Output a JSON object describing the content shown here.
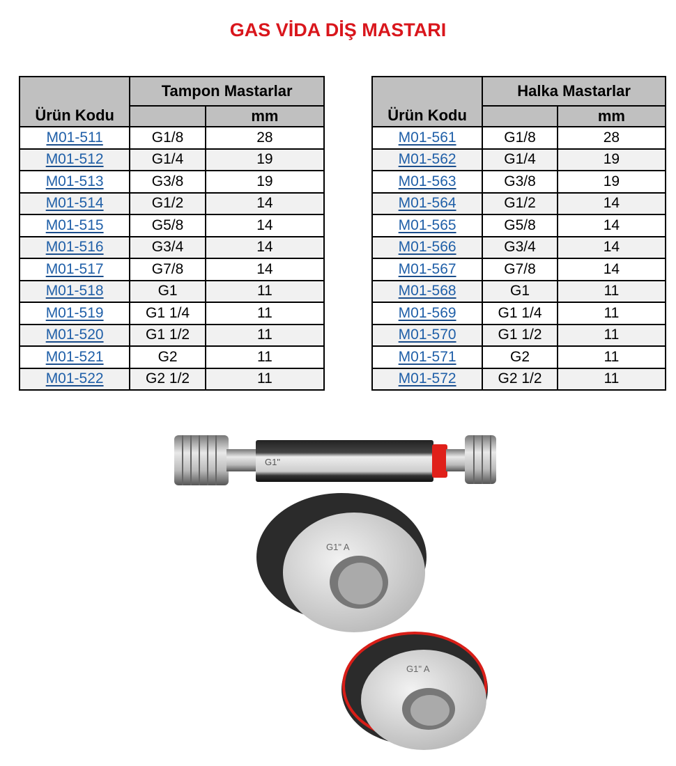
{
  "title": "GAS VİDA DİŞ MASTARI",
  "colors": {
    "title": "#d9161c",
    "link": "#1f5fa8",
    "header_bg": "#c0c0c0"
  },
  "tampon": {
    "group_header": "Tampon Mastarlar",
    "code_header": "Ürün Kodu",
    "unit_header": "mm",
    "rows": [
      {
        "code": "M01-511",
        "size": "G1/8",
        "mm": "28"
      },
      {
        "code": "M01-512",
        "size": "G1/4",
        "mm": "19"
      },
      {
        "code": "M01-513",
        "size": "G3/8",
        "mm": "19"
      },
      {
        "code": "M01-514",
        "size": "G1/2",
        "mm": "14"
      },
      {
        "code": "M01-515",
        "size": "G5/8",
        "mm": "14"
      },
      {
        "code": "M01-516",
        "size": "G3/4",
        "mm": "14"
      },
      {
        "code": "M01-517",
        "size": "G7/8",
        "mm": "14"
      },
      {
        "code": "M01-518",
        "size": "G1",
        "mm": "11"
      },
      {
        "code": "M01-519",
        "size": "G1 1/4",
        "mm": "11"
      },
      {
        "code": "M01-520",
        "size": "G1 1/2",
        "mm": "11"
      },
      {
        "code": "M01-521",
        "size": "G2",
        "mm": "11"
      },
      {
        "code": "M01-522",
        "size": "G2 1/2",
        "mm": "11"
      }
    ]
  },
  "halka": {
    "group_header": "Halka Mastarlar",
    "code_header": "Ürün Kodu",
    "unit_header": "mm",
    "rows": [
      {
        "code": "M01-561",
        "size": "G1/8",
        "mm": "28"
      },
      {
        "code": "M01-562",
        "size": "G1/4",
        "mm": "19"
      },
      {
        "code": "M01-563",
        "size": "G3/8",
        "mm": "19"
      },
      {
        "code": "M01-564",
        "size": "G1/2",
        "mm": "14"
      },
      {
        "code": "M01-565",
        "size": "G5/8",
        "mm": "14"
      },
      {
        "code": "M01-566",
        "size": "G3/4",
        "mm": "14"
      },
      {
        "code": "M01-567",
        "size": "G7/8",
        "mm": "14"
      },
      {
        "code": "M01-568",
        "size": "G1",
        "mm": "11"
      },
      {
        "code": "M01-569",
        "size": "G1 1/4",
        "mm": "11"
      },
      {
        "code": "M01-570",
        "size": "G1 1/2",
        "mm": "11"
      },
      {
        "code": "M01-571",
        "size": "G2",
        "mm": "11"
      },
      {
        "code": "M01-572",
        "size": "G2 1/2",
        "mm": "11"
      }
    ]
  },
  "photo": {
    "plug_marking": "G1\"",
    "ring_marking": "G1\" A"
  }
}
